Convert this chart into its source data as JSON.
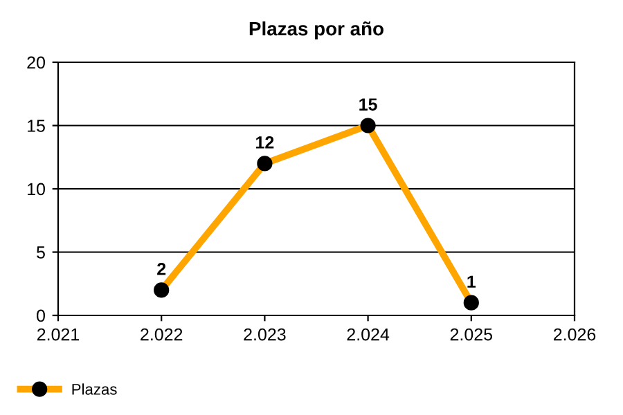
{
  "chart_data": {
    "type": "line",
    "title": "Plazas por año",
    "x": [
      2022,
      2023,
      2024,
      2025
    ],
    "series": [
      {
        "name": "Plazas",
        "color": "#ffa500",
        "values": [
          2,
          12,
          15,
          1
        ]
      }
    ],
    "xlim": [
      2021,
      2026
    ],
    "xticks": [
      {
        "value": 2021,
        "label": "2.021"
      },
      {
        "value": 2022,
        "label": "2.022"
      },
      {
        "value": 2023,
        "label": "2.023"
      },
      {
        "value": 2024,
        "label": "2.024"
      },
      {
        "value": 2025,
        "label": "2.025"
      },
      {
        "value": 2026,
        "label": "2.026"
      }
    ],
    "ylim": [
      0,
      20
    ],
    "yticks": [
      0,
      5,
      10,
      15,
      20
    ],
    "grid": "y",
    "legend": "bottom left",
    "marker": "circle",
    "line_style": "solid",
    "data_labels": true
  }
}
